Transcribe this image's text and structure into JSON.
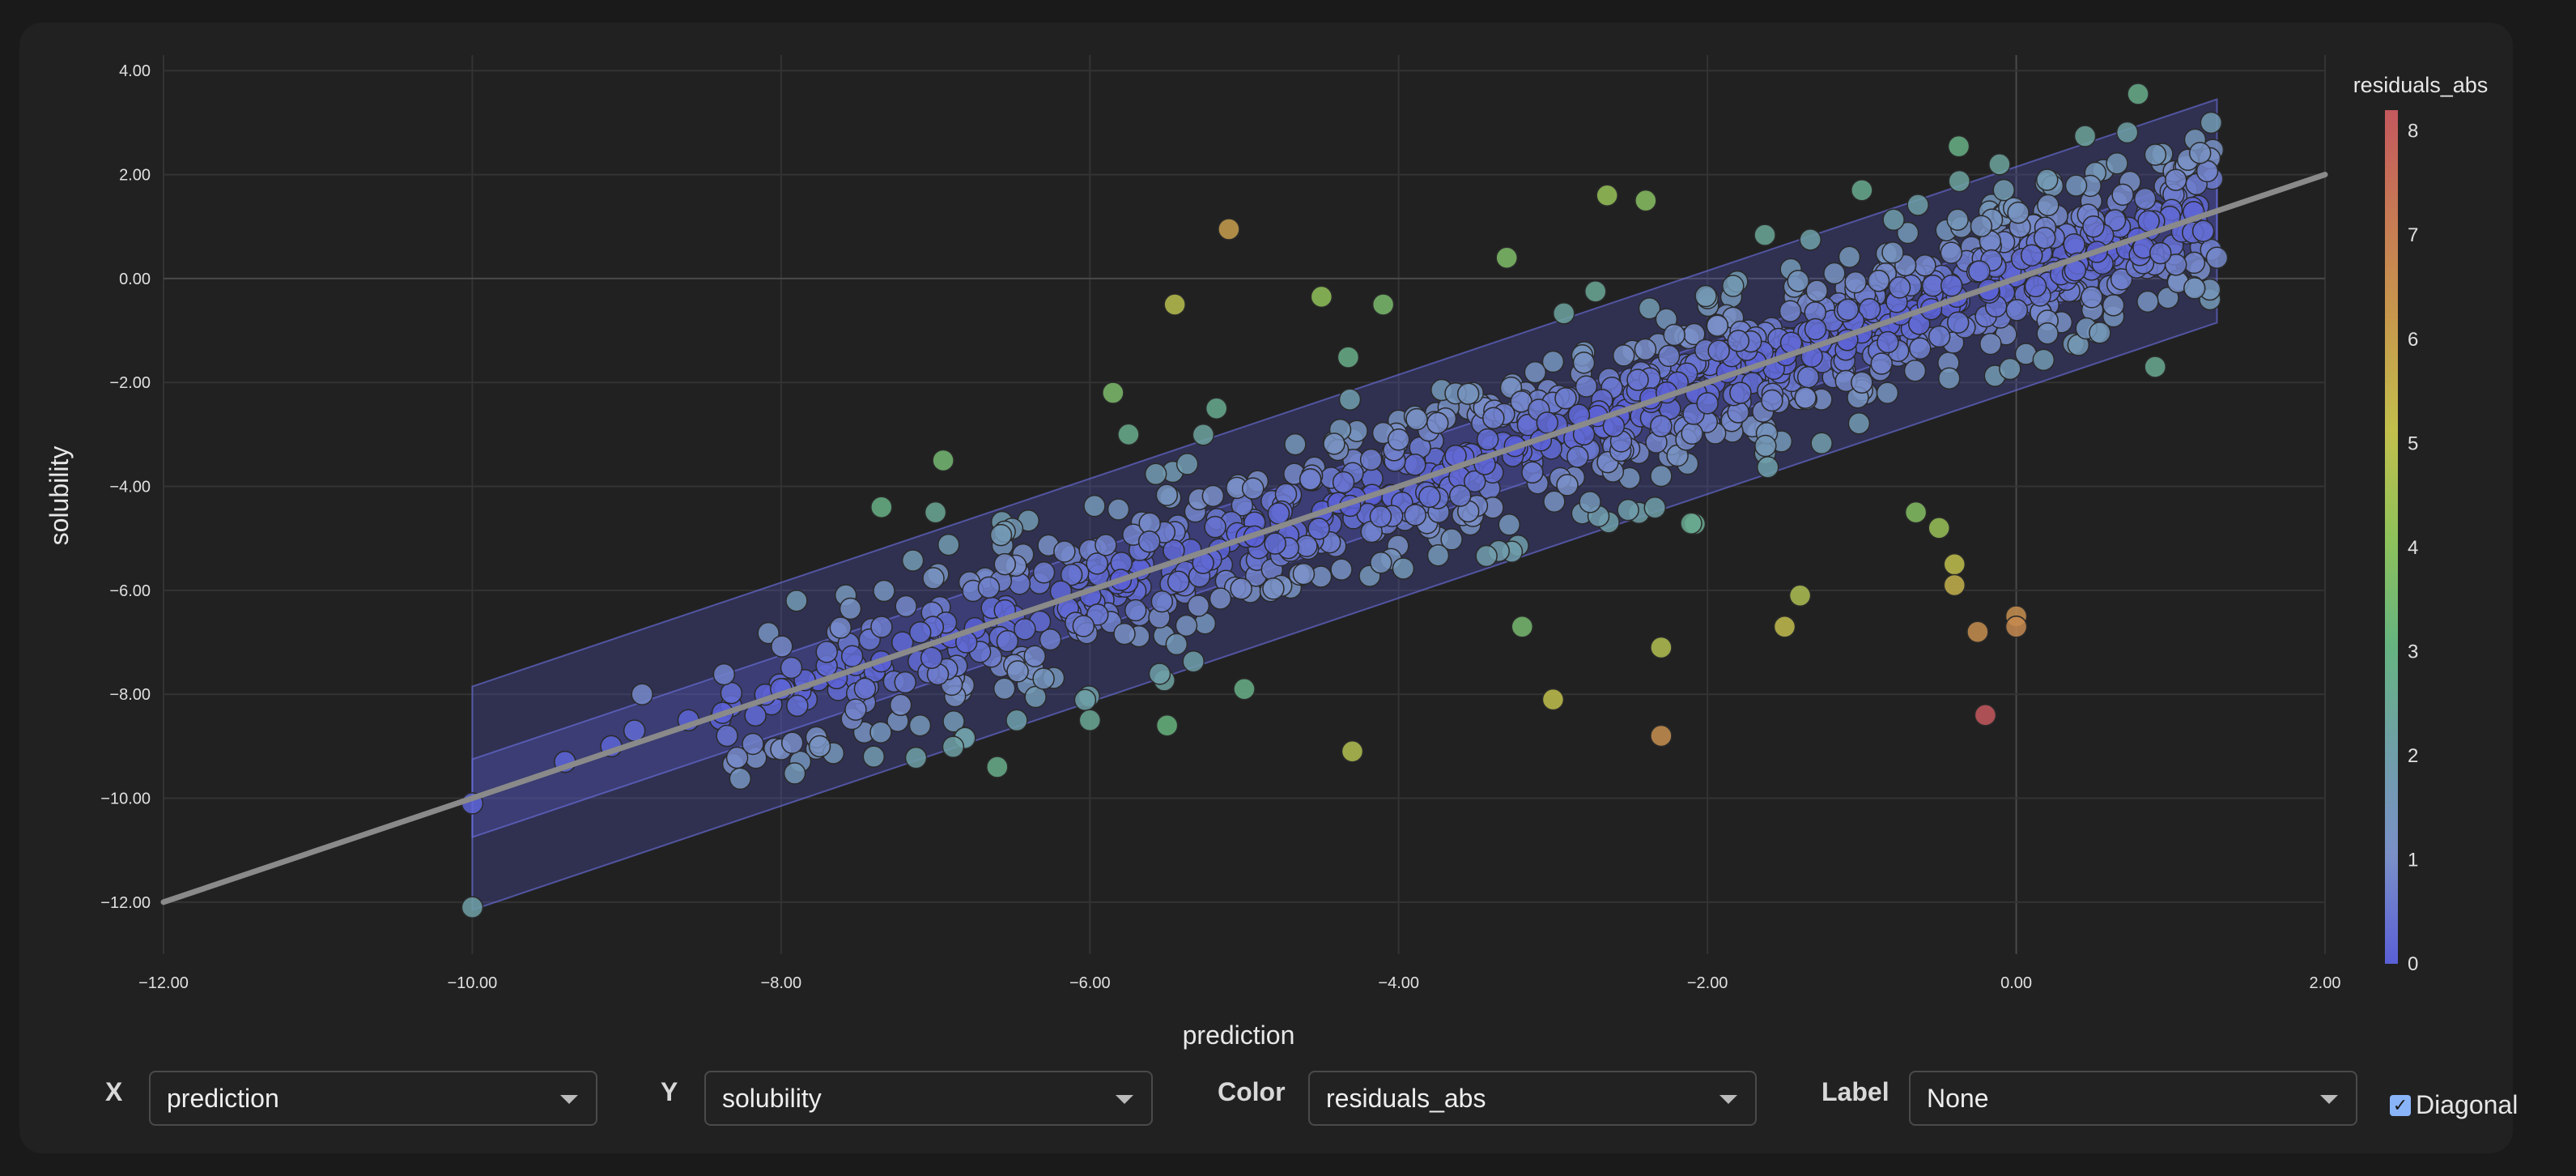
{
  "chart_data": {
    "type": "scatter",
    "xlabel": "prediction",
    "ylabel": "solubility",
    "xlim": [
      -12,
      2
    ],
    "ylim": [
      -13,
      4.3
    ],
    "x_ticks": [
      "−12.00",
      "−10.00",
      "−8.00",
      "−6.00",
      "−4.00",
      "−2.00",
      "0.00",
      "2.00"
    ],
    "y_ticks": [
      "4.00",
      "2.00",
      "0.00",
      "−2.00",
      "−4.00",
      "−6.00",
      "−8.00",
      "−10.00",
      "−12.00"
    ],
    "grid": true,
    "diagonal": true,
    "colorbar": {
      "title": "residuals_abs",
      "min": 0,
      "max": 8.2,
      "ticks": [
        "0",
        "1",
        "2",
        "3",
        "4",
        "5",
        "6",
        "7",
        "8"
      ],
      "colors": [
        "#5a5fd6",
        "#7a8fc8",
        "#6f9fa8",
        "#66b480",
        "#8fc25a",
        "#c2bf4c",
        "#c79a4c",
        "#c77a54",
        "#c4585e"
      ]
    },
    "uncertainty_band_x": [
      -10,
      1.3
    ],
    "points_dense_sample": [
      [
        -10.0,
        -10.1
      ],
      [
        -10.0,
        -12.1
      ],
      [
        -9.4,
        -9.3
      ],
      [
        -9.1,
        -9.0
      ],
      [
        -8.95,
        -8.7
      ],
      [
        -8.9,
        -8.0
      ],
      [
        -8.6,
        -8.5
      ],
      [
        -8.35,
        -8.8
      ],
      [
        -8.0,
        -7.9
      ],
      [
        -7.9,
        -6.2
      ],
      [
        -7.75,
        -9.0
      ],
      [
        -7.4,
        -9.2
      ],
      [
        -7.35,
        -4.4
      ],
      [
        -7.1,
        -8.6
      ],
      [
        -7.0,
        -4.5
      ],
      [
        -6.95,
        -3.5
      ],
      [
        -6.6,
        -9.4
      ],
      [
        -6.3,
        -7.7
      ],
      [
        -6.0,
        -8.5
      ],
      [
        -5.85,
        -2.2
      ],
      [
        -5.75,
        -3.0
      ],
      [
        -5.5,
        -8.6
      ],
      [
        -5.45,
        -0.5
      ],
      [
        -5.1,
        0.95
      ],
      [
        -5.0,
        -7.9
      ],
      [
        -4.3,
        -9.1
      ],
      [
        -4.5,
        -0.35
      ],
      [
        -4.1,
        -0.5
      ],
      [
        -3.3,
        0.4
      ],
      [
        -3.2,
        -6.7
      ],
      [
        -3.0,
        -8.1
      ],
      [
        -2.65,
        1.6
      ],
      [
        -2.4,
        1.5
      ],
      [
        -2.3,
        -8.8
      ],
      [
        -2.3,
        -7.1
      ],
      [
        -1.5,
        -6.7
      ],
      [
        -1.4,
        -6.1
      ],
      [
        -1.0,
        1.7
      ],
      [
        -0.8,
        0.5
      ],
      [
        -0.65,
        -4.5
      ],
      [
        -0.5,
        -4.8
      ],
      [
        -0.4,
        -5.5
      ],
      [
        -0.4,
        -5.9
      ],
      [
        -0.25,
        -6.8
      ],
      [
        0.2,
        1.9
      ],
      [
        0.0,
        -6.5
      ],
      [
        0.0,
        -6.7
      ],
      [
        -0.2,
        -8.4
      ],
      [
        0.9,
        -1.7
      ],
      [
        1.3,
        0.4
      ],
      [
        0.5,
        1.0
      ],
      [
        -1.8,
        -1.2
      ],
      [
        -2.8,
        -3.0
      ],
      [
        -3.8,
        -4.2
      ],
      [
        -4.8,
        -5.1
      ],
      [
        -5.8,
        -5.8
      ],
      [
        -6.8,
        -7.0
      ],
      [
        -1.0,
        -2.0
      ],
      [
        -2.0,
        -2.4
      ],
      [
        -3.0,
        -1.6
      ],
      [
        -4.0,
        -3.1
      ]
    ]
  },
  "controls": {
    "x_label": "X",
    "x_value": "prediction",
    "y_label": "Y",
    "y_value": "solubility",
    "color_label": "Color",
    "color_value": "residuals_abs",
    "label_label": "Label",
    "label_value": "None",
    "diagonal_label": "Diagonal",
    "diagonal_checked": true
  }
}
